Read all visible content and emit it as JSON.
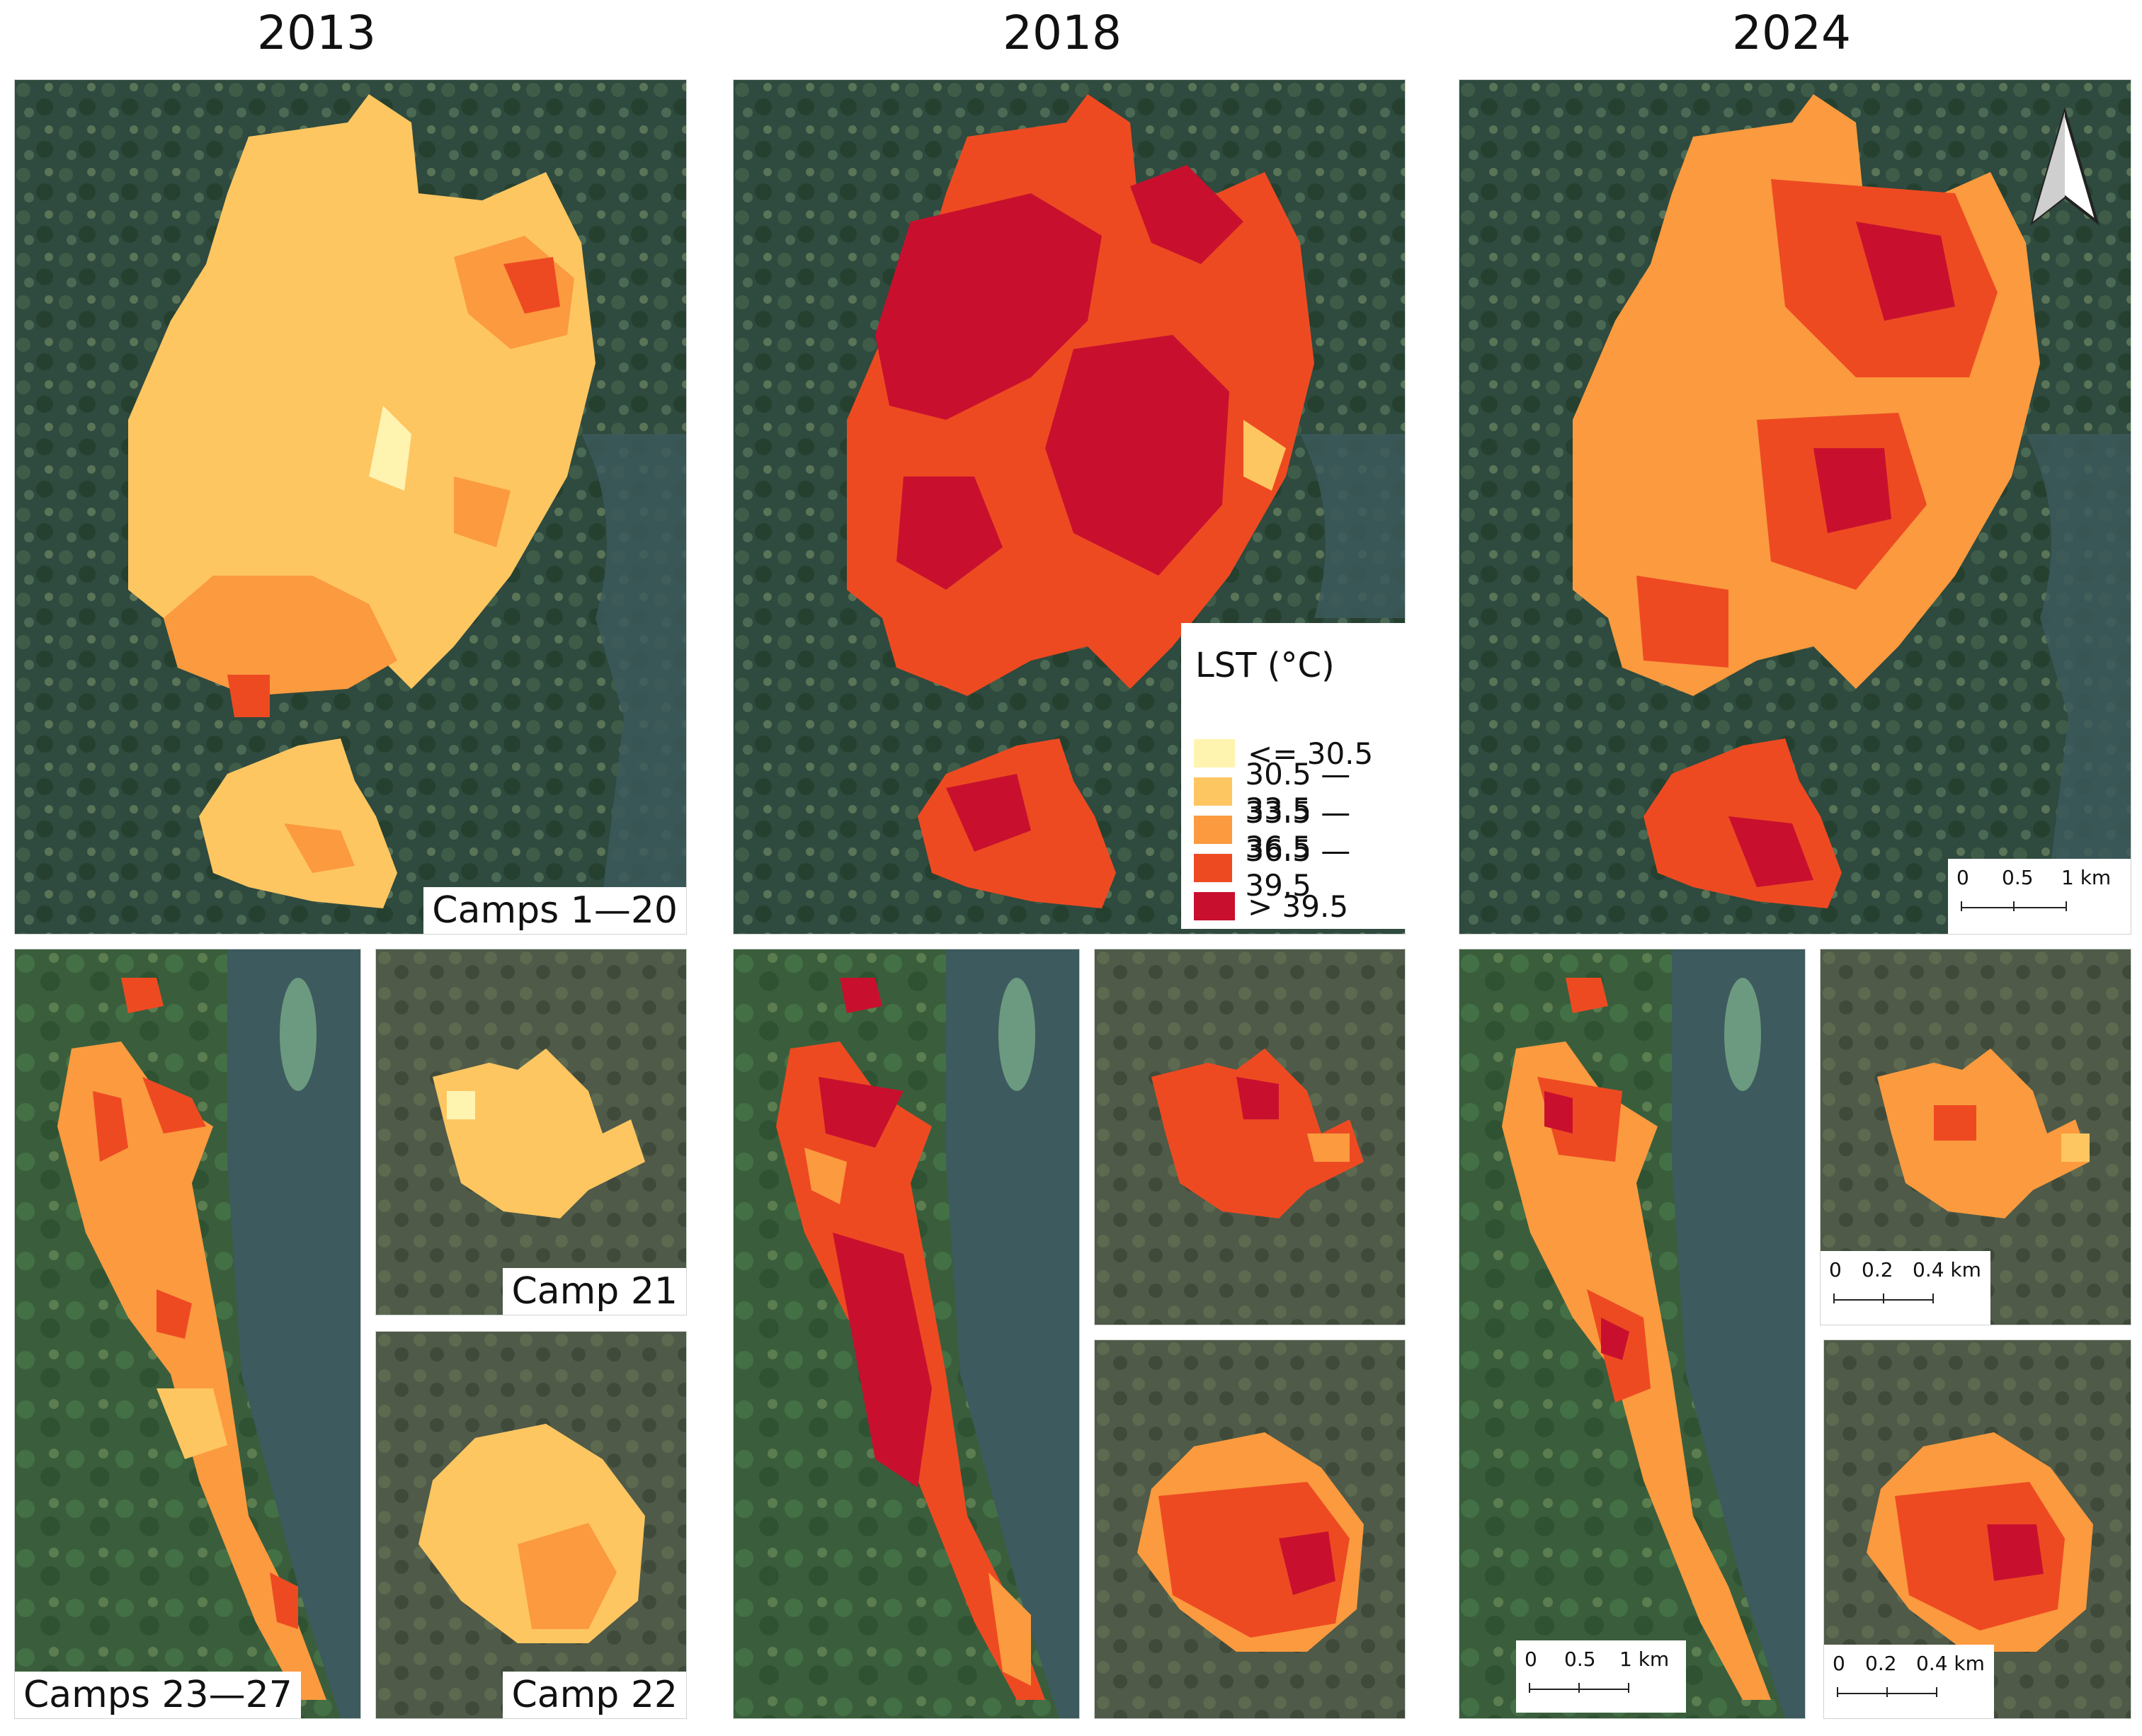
{
  "years": [
    "2013",
    "2018",
    "2024"
  ],
  "region_labels": {
    "camps_1_20": "Camps 1—20",
    "camp_21": "Camp 21",
    "camp_22": "Camp 22",
    "camps_23_27": "Camps 23—27"
  },
  "legend": {
    "title": "LST (°C)",
    "classes": [
      {
        "label": "<= 30.5",
        "color": "#fff3b0"
      },
      {
        "label": "30.5 — 33.5",
        "color": "#fec661"
      },
      {
        "label": "33.5 — 36.5",
        "color": "#fb9a3f"
      },
      {
        "label": "36.5 — 39.5",
        "color": "#ee4a22"
      },
      {
        "label": "> 39.5",
        "color": "#c8102e"
      }
    ]
  },
  "scale_bars": {
    "large": {
      "ticks": [
        "0",
        "0.5",
        "1 km"
      ]
    },
    "small": {
      "ticks": [
        "0",
        "0.2",
        "0.4 km"
      ]
    }
  },
  "north_arrow": "north-arrow-icon",
  "colors": {
    "imagery_dark": "#2f4a3e",
    "imagery_mid": "#4e6b52",
    "water": "#3d5a5e"
  }
}
